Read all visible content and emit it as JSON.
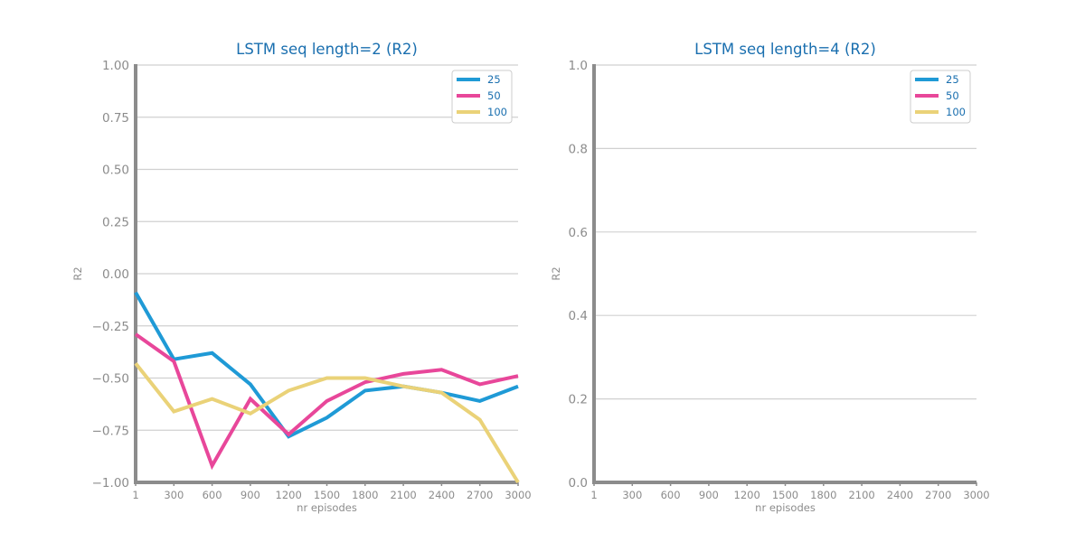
{
  "colors": {
    "title": "#1a6faf",
    "axis": "#8c8c8c",
    "tick_label": "#8c8c8c",
    "grid": "#d0d0d0",
    "legend_text": "#1a6faf"
  },
  "chart_data": [
    {
      "type": "line",
      "title": "LSTM seq length=2 (R2)",
      "xlabel": "nr episodes",
      "ylabel": "R2",
      "x_categories": [
        "1",
        "300",
        "600",
        "900",
        "1200",
        "1500",
        "1800",
        "2100",
        "2400",
        "2700",
        "3000"
      ],
      "yticks": [
        "1.00",
        "0.75",
        "0.50",
        "0.25",
        "0.00",
        "−0.25",
        "−0.50",
        "−0.75",
        "−1.00"
      ],
      "ytick_values": [
        1.0,
        0.75,
        0.5,
        0.25,
        0.0,
        -0.25,
        -0.5,
        -0.75,
        -1.0
      ],
      "ylim": [
        -1.0,
        1.0
      ],
      "grid": "horizontal",
      "legend_position": "top-right",
      "series": [
        {
          "name": "25",
          "color": "#1f9ad6",
          "values": [
            -0.09,
            -0.41,
            -0.38,
            -0.53,
            -0.78,
            -0.69,
            -0.56,
            -0.54,
            -0.57,
            -0.61,
            -0.54
          ]
        },
        {
          "name": "50",
          "color": "#e8479a",
          "values": [
            -0.29,
            -0.42,
            -0.92,
            -0.6,
            -0.77,
            -0.61,
            -0.52,
            -0.48,
            -0.46,
            -0.53,
            -0.49
          ]
        },
        {
          "name": "100",
          "color": "#ead278",
          "values": [
            -0.43,
            -0.66,
            -0.6,
            -0.67,
            -0.56,
            -0.5,
            -0.5,
            -0.54,
            -0.57,
            -0.7,
            -1.0
          ]
        }
      ]
    },
    {
      "type": "line",
      "title": "LSTM seq length=4 (R2)",
      "xlabel": "nr episodes",
      "ylabel": "R2",
      "x_categories": [
        "1",
        "300",
        "600",
        "900",
        "1200",
        "1500",
        "1800",
        "2100",
        "2400",
        "2700",
        "3000"
      ],
      "yticks": [
        "1.0",
        "0.8",
        "0.6",
        "0.4",
        "0.2",
        "0.0"
      ],
      "ytick_values": [
        1.0,
        0.8,
        0.6,
        0.4,
        0.2,
        0.0
      ],
      "ylim": [
        0.0,
        1.0
      ],
      "grid": "horizontal",
      "legend_position": "top-right",
      "series": [
        {
          "name": "25",
          "color": "#1f9ad6",
          "values": []
        },
        {
          "name": "50",
          "color": "#e8479a",
          "values": []
        },
        {
          "name": "100",
          "color": "#ead278",
          "values": []
        }
      ]
    }
  ]
}
